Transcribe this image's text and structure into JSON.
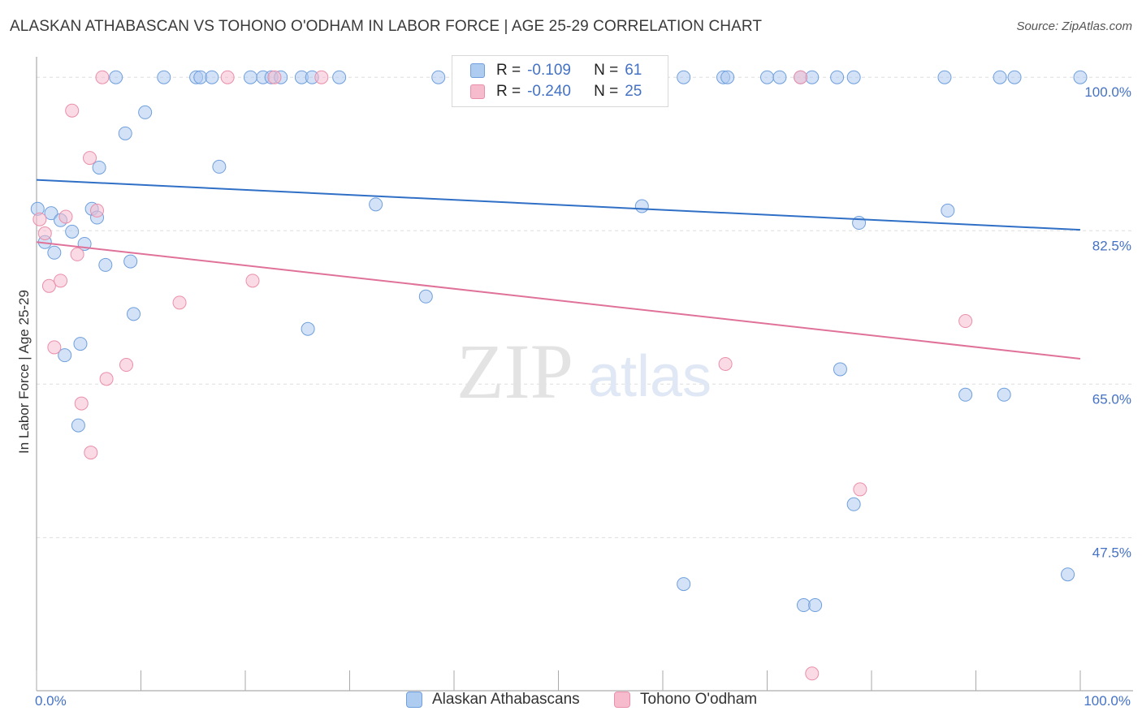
{
  "title": "ALASKAN ATHABASCAN VS TOHONO O'ODHAM IN LABOR FORCE | AGE 25-29 CORRELATION CHART",
  "source": "Source: ZipAtlas.com",
  "watermark": {
    "zip": "ZIP",
    "atlas": "atlas"
  },
  "colors": {
    "blue_fill": "#aecbf0",
    "blue_stroke": "#6f9fdc",
    "blue_line": "#2f6fc6",
    "pink_fill": "#f6bccd",
    "pink_stroke": "#ea8faa",
    "pink_line": "#e0729a",
    "tick_label": "#4472c4",
    "grid": "#dddddd"
  },
  "legend_top": {
    "rows": [
      {
        "series": "blue",
        "r_label": "R =",
        "r_value": "-0.109",
        "n_label": "N =",
        "n_value": "61"
      },
      {
        "series": "pink",
        "r_label": "R =",
        "r_value": "-0.240",
        "n_label": "N =",
        "n_value": "25"
      }
    ]
  },
  "legend_bottom": [
    {
      "series": "blue",
      "label": "Alaskan Athabascans"
    },
    {
      "series": "pink",
      "label": "Tohono O'odham"
    }
  ],
  "chart_data": {
    "type": "scatter",
    "title": "ALASKAN ATHABASCAN VS TOHONO O'ODHAM IN LABOR FORCE | AGE 25-29 CORRELATION CHART",
    "xlabel": "",
    "ylabel": "In Labor Force | Age 25-29",
    "xlim": [
      0,
      100
    ],
    "ylim": [
      30.5,
      101.5
    ],
    "x_tick_labels": [
      {
        "value": 0,
        "label": "0.0%"
      },
      {
        "value": 100,
        "label": "100.0%"
      }
    ],
    "y_tick_labels": [
      {
        "value": 100,
        "label": "100.0%"
      },
      {
        "value": 82.5,
        "label": "82.5%"
      },
      {
        "value": 65,
        "label": "65.0%"
      },
      {
        "value": 47.5,
        "label": "47.5%"
      }
    ],
    "grid": true,
    "legend": "top-center",
    "series": [
      {
        "name": "Alaskan Athabascans",
        "color": "blue",
        "r": -0.109,
        "n": 61,
        "trend": {
          "x": [
            0,
            100
          ],
          "y": [
            88.3,
            82.6
          ]
        },
        "points": [
          [
            0.1,
            85.0
          ],
          [
            0.8,
            81.2
          ],
          [
            1.4,
            84.5
          ],
          [
            1.7,
            80.0
          ],
          [
            2.3,
            83.7
          ],
          [
            2.7,
            68.3
          ],
          [
            3.4,
            82.4
          ],
          [
            4.2,
            69.6
          ],
          [
            4.0,
            60.3
          ],
          [
            4.6,
            81.0
          ],
          [
            5.3,
            85.0
          ],
          [
            5.8,
            84.0
          ],
          [
            6.0,
            89.7
          ],
          [
            6.6,
            78.6
          ],
          [
            7.6,
            100.0
          ],
          [
            8.5,
            93.6
          ],
          [
            9.0,
            79.0
          ],
          [
            9.3,
            73.0
          ],
          [
            10.4,
            96.0
          ],
          [
            12.2,
            100.0
          ],
          [
            15.3,
            100.0
          ],
          [
            15.7,
            100.0
          ],
          [
            16.8,
            100.0
          ],
          [
            17.5,
            89.8
          ],
          [
            20.5,
            100.0
          ],
          [
            21.7,
            100.0
          ],
          [
            22.5,
            100.0
          ],
          [
            23.4,
            100.0
          ],
          [
            25.4,
            100.0
          ],
          [
            26.0,
            71.3
          ],
          [
            26.4,
            100.0
          ],
          [
            29.0,
            100.0
          ],
          [
            32.5,
            85.5
          ],
          [
            37.3,
            75.0
          ],
          [
            38.5,
            100.0
          ],
          [
            50.5,
            100.0
          ],
          [
            55.0,
            100.0
          ],
          [
            58.0,
            85.3
          ],
          [
            62.0,
            100.0
          ],
          [
            62.0,
            42.2
          ],
          [
            65.8,
            100.0
          ],
          [
            66.2,
            100.0
          ],
          [
            70.0,
            100.0
          ],
          [
            71.2,
            100.0
          ],
          [
            73.2,
            100.0
          ],
          [
            73.5,
            39.8
          ],
          [
            74.3,
            100.0
          ],
          [
            74.6,
            39.8
          ],
          [
            76.7,
            100.0
          ],
          [
            77.0,
            66.7
          ],
          [
            78.3,
            100.0
          ],
          [
            78.8,
            83.4
          ],
          [
            78.3,
            51.3
          ],
          [
            87.0,
            100.0
          ],
          [
            87.3,
            84.8
          ],
          [
            89.0,
            63.8
          ],
          [
            92.3,
            100.0
          ],
          [
            92.7,
            63.8
          ],
          [
            93.7,
            100.0
          ],
          [
            98.8,
            43.3
          ],
          [
            100.0,
            100.0
          ]
        ]
      },
      {
        "name": "Tohono O'odham",
        "color": "pink",
        "r": -0.24,
        "n": 25,
        "trend": {
          "x": [
            0,
            100
          ],
          "y": [
            81.2,
            67.9
          ]
        },
        "points": [
          [
            0.3,
            83.8
          ],
          [
            0.8,
            82.2
          ],
          [
            1.2,
            76.2
          ],
          [
            1.7,
            69.2
          ],
          [
            2.3,
            76.8
          ],
          [
            2.8,
            84.1
          ],
          [
            3.4,
            96.2
          ],
          [
            3.9,
            79.8
          ],
          [
            4.3,
            62.8
          ],
          [
            5.1,
            90.8
          ],
          [
            5.2,
            57.2
          ],
          [
            5.8,
            84.8
          ],
          [
            6.3,
            100.0
          ],
          [
            6.7,
            65.6
          ],
          [
            8.6,
            67.2
          ],
          [
            13.7,
            74.3
          ],
          [
            18.3,
            100.0
          ],
          [
            20.7,
            76.8
          ],
          [
            22.8,
            100.0
          ],
          [
            27.3,
            100.0
          ],
          [
            66.0,
            67.3
          ],
          [
            73.2,
            100.0
          ],
          [
            74.3,
            32.0
          ],
          [
            78.9,
            53.0
          ],
          [
            89.0,
            72.2
          ]
        ]
      }
    ]
  }
}
